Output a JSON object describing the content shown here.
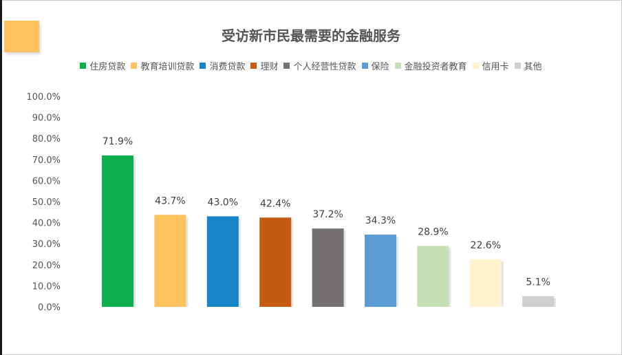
{
  "chart_data": {
    "type": "bar",
    "title": "受访新市民最需要的金融服务",
    "categories": [
      "住房贷款",
      "教育培训贷款",
      "消费贷款",
      "理财",
      "个人经营性贷款",
      "保险",
      "金融投资者教育",
      "信用卡",
      "其他"
    ],
    "values": [
      71.9,
      43.7,
      43.0,
      42.4,
      37.2,
      34.3,
      28.9,
      22.6,
      5.1
    ],
    "value_labels": [
      "71.9%",
      "43.7%",
      "43.0%",
      "42.4%",
      "37.2%",
      "34.3%",
      "28.9%",
      "22.6%",
      "5.1%"
    ],
    "colors": [
      "#0DB04E",
      "#FFC05E",
      "#1784C7",
      "#C55A11",
      "#767171",
      "#5B9BD5",
      "#C5E0B4",
      "#FFF2CC",
      "#D0CECE"
    ],
    "ylim": [
      0,
      100
    ],
    "y_ticks": [
      0,
      10,
      20,
      30,
      40,
      50,
      60,
      70,
      80,
      90,
      100
    ],
    "y_tick_labels": [
      "0.0%",
      "10.0%",
      "20.0%",
      "30.0%",
      "40.0%",
      "50.0%",
      "60.0%",
      "70.0%",
      "80.0%",
      "90.0%",
      "100.0%"
    ],
    "xlabel": "",
    "ylabel": "",
    "legend_position": "top",
    "grid": false
  },
  "accent_color": "#FFC05E"
}
